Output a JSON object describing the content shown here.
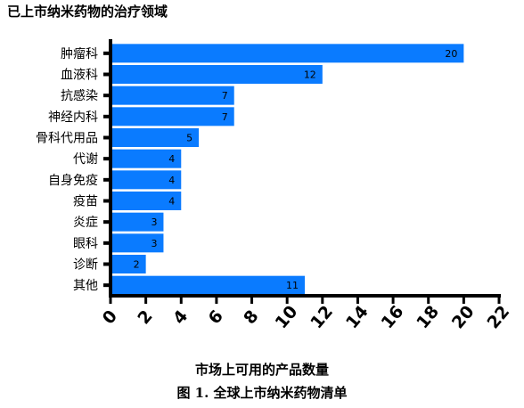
{
  "chart_data": {
    "type": "bar",
    "orientation": "horizontal",
    "title": "已上市纳米药物的治疗领域",
    "xlabel": "市场上可用的产品数量",
    "ylabel": "",
    "categories": [
      "肿瘤科",
      "血液科",
      "抗感染",
      "神经内科",
      "骨科代用品",
      "代谢",
      "自身免疫",
      "疫苗",
      "炎症",
      "眼科",
      "诊断",
      "其他"
    ],
    "values": [
      20,
      12,
      7,
      7,
      5,
      4,
      4,
      4,
      3,
      3,
      2,
      11
    ],
    "data_labels": [
      "20",
      "12",
      "7",
      "7",
      "5",
      "4",
      "4",
      "4",
      "3",
      "3",
      "2",
      "11"
    ],
    "xlim": [
      0,
      22
    ],
    "xticks": [
      "0",
      "2",
      "4",
      "6",
      "8",
      "10",
      "12",
      "14",
      "16",
      "18",
      "20",
      "22"
    ],
    "bar_color": "#0a7bff",
    "grid": false,
    "legend": "none"
  },
  "figure_caption": "图 1.  全球上市纳米药物清单"
}
